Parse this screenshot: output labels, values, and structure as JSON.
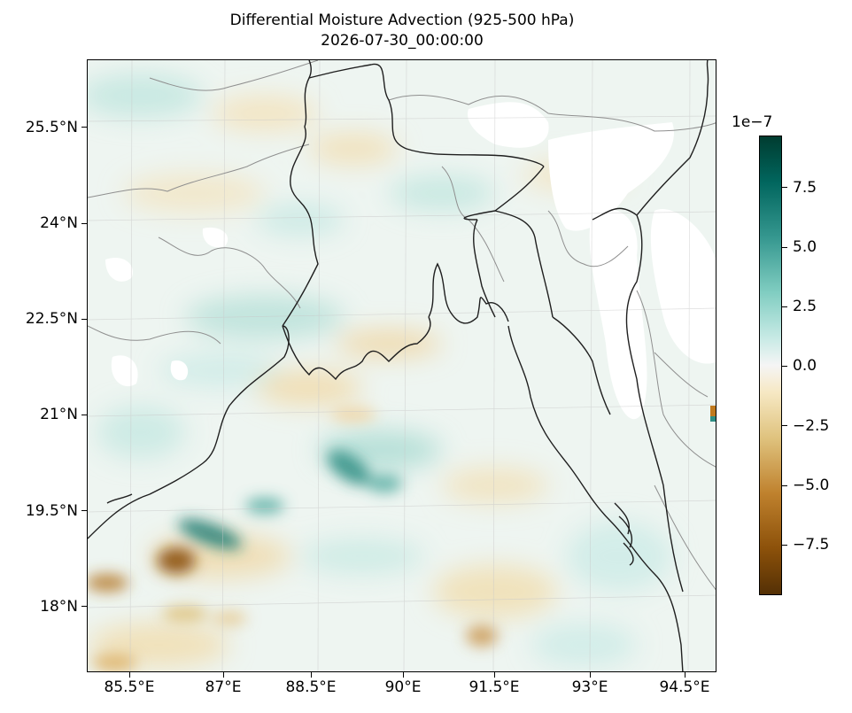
{
  "title": "Differential Moisture Advection (925-500 hPa)",
  "subtitle": "2026-07-30_00:00:00",
  "axes": {
    "y_ticks": [
      "25.5°N",
      "24°N",
      "22.5°N",
      "21°N",
      "19.5°N",
      "18°N"
    ],
    "x_ticks": [
      "85.5°E",
      "87°E",
      "88.5°E",
      "90°E",
      "91.5°E",
      "93°E",
      "94.5°E"
    ]
  },
  "colorbar": {
    "exponent_label": "1e−7",
    "ticks": [
      "7.5",
      "5.0",
      "2.5",
      "0.0",
      "−2.5",
      "−5.0",
      "−7.5"
    ],
    "colors": {
      "max": "#003c30",
      "mid": "#f5f5f5",
      "min": "#543005"
    }
  },
  "map": {
    "extent_lon": [
      84.5,
      95.0
    ],
    "extent_lat": [
      17.0,
      26.7
    ],
    "background": "#f3f6f2",
    "coastline_color": "#222222",
    "border_color": "#999999",
    "missing_color": "#ffffff"
  }
}
